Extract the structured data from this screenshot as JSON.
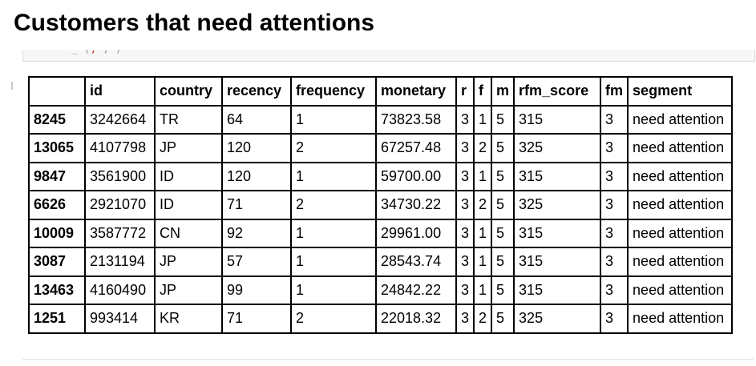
{
  "title": "Customers that need attentions",
  "code_fragment": {
    "part1": "_   (",
    "part2": ",",
    "part3": "       ,          )"
  },
  "table": {
    "columns": [
      "",
      "id",
      "country",
      "recency",
      "frequency",
      "monetary",
      "r",
      "f",
      "m",
      "rfm_score",
      "fm",
      "segment"
    ],
    "rows": [
      [
        "8245",
        "3242664",
        "TR",
        "64",
        "1",
        "73823.58",
        "3",
        "1",
        "5",
        "315",
        "3",
        "need attention"
      ],
      [
        "13065",
        "4107798",
        "JP",
        "120",
        "2",
        "67257.48",
        "3",
        "2",
        "5",
        "325",
        "3",
        "need attention"
      ],
      [
        "9847",
        "3561900",
        "ID",
        "120",
        "1",
        "59700.00",
        "3",
        "1",
        "5",
        "315",
        "3",
        "need attention"
      ],
      [
        "6626",
        "2921070",
        "ID",
        "71",
        "2",
        "34730.22",
        "3",
        "2",
        "5",
        "325",
        "3",
        "need attention"
      ],
      [
        "10009",
        "3587772",
        "CN",
        "92",
        "1",
        "29961.00",
        "3",
        "1",
        "5",
        "315",
        "3",
        "need attention"
      ],
      [
        "3087",
        "2131194",
        "JP",
        "57",
        "1",
        "28543.74",
        "3",
        "1",
        "5",
        "315",
        "3",
        "need attention"
      ],
      [
        "13463",
        "4160490",
        "JP",
        "99",
        "1",
        "24842.22",
        "3",
        "1",
        "5",
        "315",
        "3",
        "need attention"
      ],
      [
        "1251",
        "993414",
        "KR",
        "71",
        "2",
        "22018.32",
        "3",
        "2",
        "5",
        "325",
        "3",
        "need attention"
      ]
    ]
  }
}
